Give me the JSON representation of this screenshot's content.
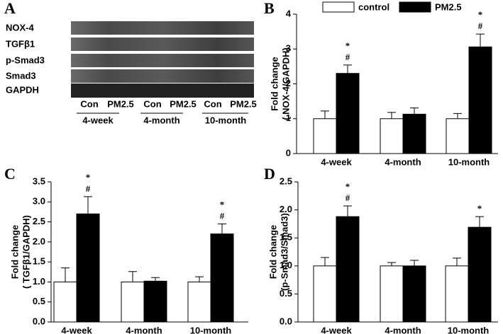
{
  "blot": {
    "panel": "A",
    "rows": [
      "NOX-4",
      "TGFβ1",
      "p-Smad3",
      "Smad3",
      "GAPDH"
    ],
    "lanes": [
      "Con",
      "PM2.5",
      "Con",
      "PM2.5",
      "Con",
      "PM2.5"
    ],
    "groups": [
      "4-week",
      "4-month",
      "10-month"
    ]
  },
  "chart_data": [
    {
      "type": "bar",
      "panel": "B",
      "y_label": [
        "Fold change",
        "( NOX-4/GAPDH)"
      ],
      "categories": [
        "4-week",
        "4-month",
        "10-month"
      ],
      "series": [
        {
          "name": "control",
          "color": "#ffffff",
          "values": [
            1.0,
            1.0,
            1.0
          ],
          "errors": [
            0.22,
            0.18,
            0.15
          ]
        },
        {
          "name": "PM2.5",
          "color": "#000000",
          "values": [
            2.3,
            1.13,
            3.06
          ],
          "errors": [
            0.24,
            0.18,
            0.37
          ]
        }
      ],
      "annotations": [
        [
          "*",
          "#"
        ],
        [],
        [
          "*",
          "#"
        ]
      ],
      "legend": "top",
      "ylim": [
        0,
        4
      ],
      "yticks": [
        0,
        1,
        2,
        3,
        4
      ]
    },
    {
      "type": "bar",
      "panel": "C",
      "y_label": [
        "Fold change",
        "( TGFβ1/GAPDH)"
      ],
      "categories": [
        "4-week",
        "4-month",
        "10-month"
      ],
      "series": [
        {
          "name": "control",
          "color": "#ffffff",
          "values": [
            1.0,
            1.0,
            1.0
          ],
          "errors": [
            0.35,
            0.26,
            0.13
          ]
        },
        {
          "name": "PM2.5",
          "color": "#000000",
          "values": [
            2.7,
            1.02,
            2.2
          ],
          "errors": [
            0.43,
            0.09,
            0.25
          ]
        }
      ],
      "annotations": [
        [
          "*",
          "#"
        ],
        [],
        [
          "*",
          "#"
        ]
      ],
      "ylim": [
        0,
        3.5
      ],
      "yticks": [
        {
          "value": 0,
          "label": "0.0"
        },
        0.5,
        {
          "value": 1,
          "label": "1.0"
        },
        1.5,
        {
          "value": 2,
          "label": "2.0"
        },
        2.5,
        {
          "value": 3,
          "label": "3.0"
        },
        3.5
      ]
    },
    {
      "type": "bar",
      "panel": "D",
      "y_label": [
        "Fold change",
        "(p-Smad3/Smad3)"
      ],
      "categories": [
        "4-week",
        "4-month",
        "10-month"
      ],
      "series": [
        {
          "name": "control",
          "color": "#ffffff",
          "values": [
            1.0,
            1.0,
            1.0
          ],
          "errors": [
            0.15,
            0.06,
            0.14
          ]
        },
        {
          "name": "PM2.5",
          "color": "#000000",
          "values": [
            1.88,
            1.0,
            1.69
          ],
          "errors": [
            0.19,
            0.1,
            0.19
          ]
        }
      ],
      "annotations": [
        [
          "*",
          "#"
        ],
        [],
        [
          "*"
        ]
      ],
      "ylim": [
        0,
        2.5
      ],
      "yticks": [
        {
          "value": 0,
          "label": "0.0"
        },
        0.5,
        {
          "value": 1,
          "label": "1.0"
        },
        1.5,
        {
          "value": 2,
          "label": "2.0"
        },
        2.5
      ]
    }
  ]
}
